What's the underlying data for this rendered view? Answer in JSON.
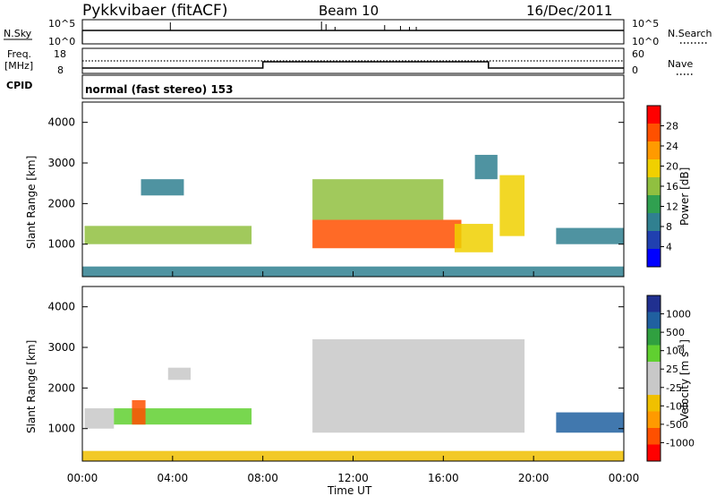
{
  "header": {
    "station": "Pykkvibaer (fitACF)",
    "beam": "Beam 10",
    "date": "16/Dec/2011"
  },
  "noise_panel": {
    "left_label": "N.Sky",
    "right_label": "N.Search",
    "left_ticks": [
      "10^5",
      "10^0"
    ],
    "right_ticks": [
      "10^5",
      "10^0"
    ]
  },
  "freq_panel": {
    "label_line1": "Freq.",
    "label_line2": "[MHz]",
    "left_ticks": [
      "18",
      "8"
    ],
    "right_ticks": [
      "60",
      "0"
    ],
    "right_label": "Nave",
    "freq_step": {
      "low": 8,
      "high": 12,
      "step_up_hour": 8.0,
      "step_down_hour": 18.0
    }
  },
  "cpid": {
    "label": "CPID",
    "text": "normal (fast stereo) 153"
  },
  "power_panel": {
    "ylabel": "Slant Range [km]",
    "yticks": [
      1000,
      2000,
      3000,
      4000
    ],
    "colorbar_label": "Power [dB]",
    "colorbar_ticks": [
      "28",
      "24",
      "20",
      "16",
      "12",
      "8",
      "4"
    ],
    "colors": [
      "#ff0000",
      "#ff5000",
      "#ff9a00",
      "#f0d000",
      "#90c040",
      "#30a050",
      "#308090",
      "#2040b0",
      "#0000ff"
    ]
  },
  "velocity_panel": {
    "ylabel": "Slant Range [km]",
    "yticks": [
      1000,
      2000,
      3000,
      4000
    ],
    "colorbar_label": "Velocity [m s",
    "colorbar_label_sup": "-1",
    "colorbar_label_end": "]",
    "colorbar_ticks": [
      "1000",
      "500",
      "100",
      "25",
      "-25",
      "-100",
      "-500",
      "-1000"
    ],
    "colors": [
      "#203090",
      "#2060a0",
      "#30a040",
      "#60d030",
      "#c8c8c8",
      "#c8c8c8",
      "#f0c000",
      "#ff9a00",
      "#ff5000",
      "#ff0000"
    ]
  },
  "xaxis": {
    "ticks": [
      "00:00",
      "04:00",
      "08:00",
      "12:00",
      "16:00",
      "20:00",
      "00:00"
    ],
    "label": "Time UT"
  },
  "chart_data": {
    "type": "heatmap",
    "title": "Pykkvibaer (fitACF)   Beam 10   16/Dec/2011",
    "xlabel": "Time UT",
    "ylabel": "Slant Range [km]",
    "xlim": [
      0,
      24
    ],
    "ylim": [
      200,
      4500
    ],
    "power_scale": [
      0,
      30
    ],
    "velocity_scale": [
      -1000,
      1000
    ],
    "panels": [
      {
        "name": "Power",
        "regions": [
          {
            "t0": 0.1,
            "t1": 7.5,
            "r0": 1000,
            "r1": 1450,
            "value": 14
          },
          {
            "t0": 2.6,
            "t1": 4.5,
            "r0": 2200,
            "r1": 2600,
            "value": 6
          },
          {
            "t0": 10.2,
            "t1": 16.8,
            "r0": 900,
            "r1": 1600,
            "value": 28
          },
          {
            "t0": 10.2,
            "t1": 16.0,
            "r0": 1600,
            "r1": 2600,
            "value": 16
          },
          {
            "t0": 16.5,
            "t1": 18.2,
            "r0": 800,
            "r1": 1500,
            "value": 20
          },
          {
            "t0": 18.5,
            "t1": 19.6,
            "r0": 1200,
            "r1": 2700,
            "value": 18
          },
          {
            "t0": 17.4,
            "t1": 18.4,
            "r0": 2600,
            "r1": 3200,
            "value": 8
          },
          {
            "t0": 21.0,
            "t1": 24.0,
            "r0": 1000,
            "r1": 1400,
            "value": 8
          },
          {
            "t0": 0.0,
            "t1": 24.0,
            "r0": 200,
            "r1": 450,
            "value": 6
          }
        ]
      },
      {
        "name": "Velocity",
        "regions": [
          {
            "t0": 0.1,
            "t1": 1.4,
            "r0": 1000,
            "r1": 1500,
            "value": 0
          },
          {
            "t0": 1.4,
            "t1": 7.5,
            "r0": 1100,
            "r1": 1500,
            "value": 60
          },
          {
            "t0": 2.2,
            "t1": 2.8,
            "r0": 1100,
            "r1": 1700,
            "value": -600
          },
          {
            "t0": 10.2,
            "t1": 19.6,
            "r0": 900,
            "r1": 3200,
            "value": 0
          },
          {
            "t0": 3.8,
            "t1": 4.8,
            "r0": 2200,
            "r1": 2500,
            "value": 0
          },
          {
            "t0": 21.0,
            "t1": 24.0,
            "r0": 900,
            "r1": 1400,
            "value": 200
          },
          {
            "t0": 0.0,
            "t1": 24.0,
            "r0": 200,
            "r1": 450,
            "value": -80
          }
        ]
      }
    ]
  }
}
